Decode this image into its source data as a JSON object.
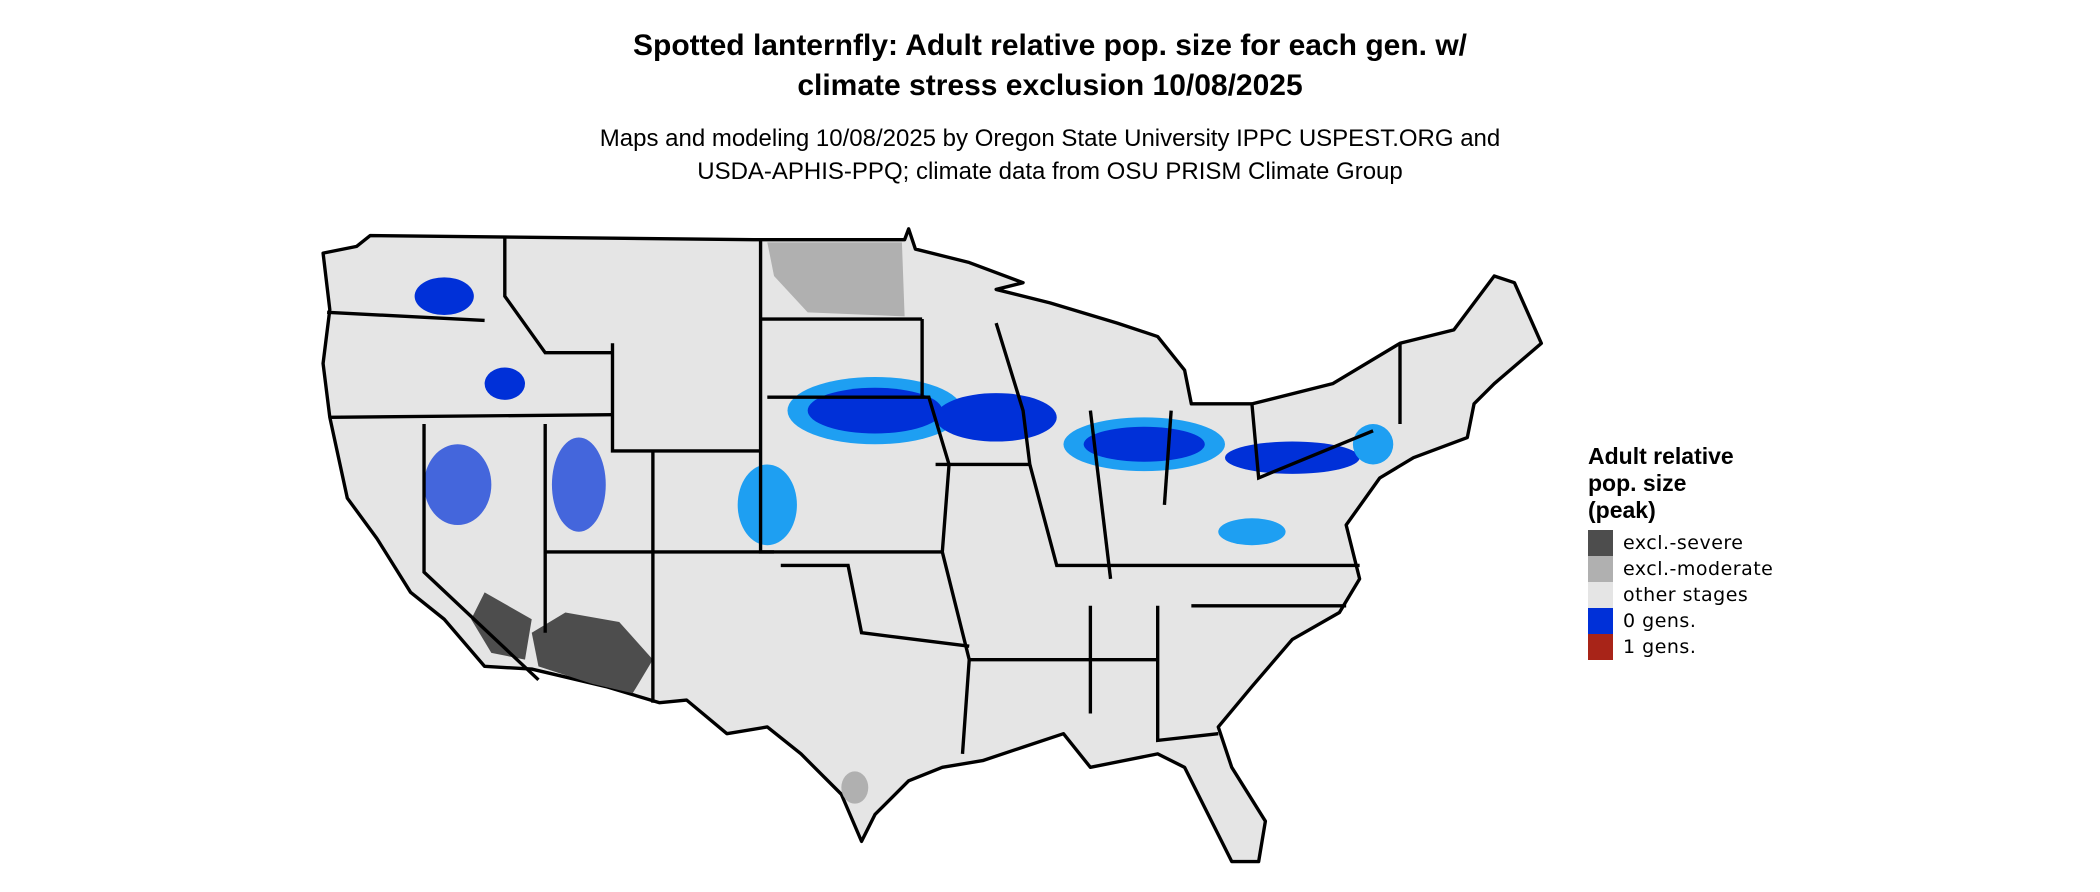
{
  "title": [
    "Spotted lanternfly: Adult relative pop. size for each gen. w/",
    "climate stress exclusion 10/08/2025"
  ],
  "subtitle": [
    "Maps and modeling 10/08/2025 by Oregon State University IPPC USPEST.ORG and",
    "USDA-APHIS-PPQ; climate data from OSU PRISM Climate Group"
  ],
  "legend": {
    "title": [
      "Adult relative",
      "pop. size",
      "(peak)"
    ],
    "items": [
      {
        "label": "excl.-severe",
        "color": "#4d4d4d"
      },
      {
        "label": "excl.-moderate",
        "color": "#b0b0b0"
      },
      {
        "label": "other stages",
        "color": "#e5e5e5"
      },
      {
        "label": "0 gens.",
        "color": "#0030d8"
      },
      {
        "label": "1 gens.",
        "color": "#a82418"
      }
    ]
  },
  "colors": {
    "land": "#e5e5e5",
    "border": "#000000",
    "blue_light": "#1e9ff2"
  }
}
